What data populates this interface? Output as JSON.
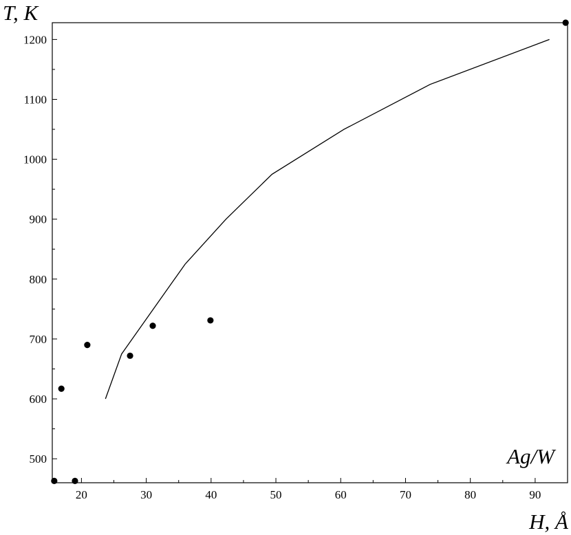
{
  "chart_data": {
    "type": "scatter",
    "xlabel": "H, Å",
    "ylabel": "T, K",
    "annotation": "Ag/W",
    "xlim": [
      15.5,
      95
    ],
    "ylim": [
      460,
      1228
    ],
    "grid": false,
    "x_ticks": [
      20,
      30,
      40,
      50,
      60,
      70,
      80,
      90
    ],
    "y_ticks": [
      500,
      600,
      700,
      800,
      900,
      1000,
      1100,
      1200
    ],
    "series": [
      {
        "type": "line",
        "x": [
          23.7,
          26.2,
          36.0,
          42.3,
          49.4,
          60.5,
          73.8,
          92.2
        ],
        "y": [
          600,
          675,
          825,
          900,
          975,
          1050,
          1125,
          1200
        ]
      },
      {
        "type": "scatter",
        "x": [
          15.8,
          16.9,
          19.0,
          20.9,
          27.5,
          31.0,
          39.9,
          94.7
        ],
        "y": [
          463,
          617,
          463,
          690,
          672,
          722,
          731,
          1228
        ]
      }
    ]
  }
}
